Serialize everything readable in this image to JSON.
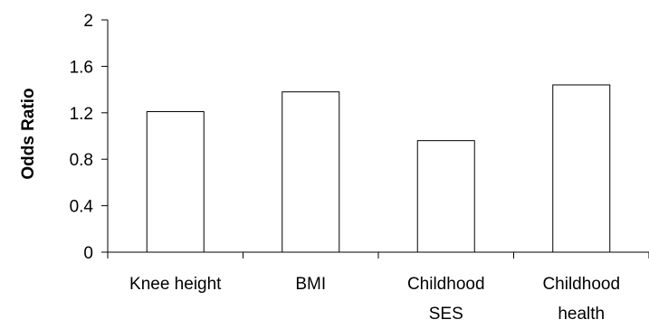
{
  "chart_data": {
    "type": "bar",
    "categories": [
      "Knee height",
      "BMI",
      "Childhood SES",
      "Childhood health"
    ],
    "category_lines": [
      [
        "Knee height"
      ],
      [
        "BMI"
      ],
      [
        "Childhood",
        "SES"
      ],
      [
        "Childhood",
        "health"
      ]
    ],
    "values": [
      1.21,
      1.38,
      0.96,
      1.44
    ],
    "title": "",
    "xlabel": "",
    "ylabel": "Odds Ratio",
    "ylim": [
      0,
      2
    ],
    "yticks": [
      0,
      0.4,
      0.8,
      1.2,
      1.6,
      2
    ],
    "ytick_labels": [
      "0",
      "0.4",
      "0.8",
      "1.2",
      "1.6",
      "2"
    ],
    "grid": false,
    "legend": "none",
    "bar_fill": "#ffffff",
    "bar_stroke": "#000000"
  }
}
